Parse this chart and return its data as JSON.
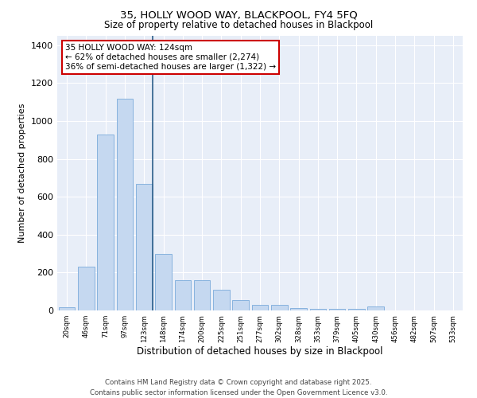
{
  "title_line1": "35, HOLLY WOOD WAY, BLACKPOOL, FY4 5FQ",
  "title_line2": "Size of property relative to detached houses in Blackpool",
  "xlabel": "Distribution of detached houses by size in Blackpool",
  "ylabel": "Number of detached properties",
  "bar_color": "#c5d8f0",
  "bar_edge_color": "#7aaadb",
  "highlight_line_color": "#2c5f8a",
  "background_color": "#e8eef8",
  "annotation_box_color": "#cc0000",
  "annotation_text": "35 HOLLY WOOD WAY: 124sqm\n← 62% of detached houses are smaller (2,274)\n36% of semi-detached houses are larger (1,322) →",
  "highlight_bin_index": 4,
  "categories": [
    "20sqm",
    "46sqm",
    "71sqm",
    "97sqm",
    "123sqm",
    "148sqm",
    "174sqm",
    "200sqm",
    "225sqm",
    "251sqm",
    "277sqm",
    "302sqm",
    "328sqm",
    "353sqm",
    "379sqm",
    "405sqm",
    "430sqm",
    "456sqm",
    "482sqm",
    "507sqm",
    "533sqm"
  ],
  "values": [
    15,
    230,
    930,
    1120,
    670,
    300,
    160,
    160,
    110,
    55,
    30,
    28,
    12,
    8,
    8,
    8,
    22,
    0,
    0,
    0,
    2
  ],
  "ylim": [
    0,
    1450
  ],
  "yticks": [
    0,
    200,
    400,
    600,
    800,
    1000,
    1200,
    1400
  ],
  "footer_line1": "Contains HM Land Registry data © Crown copyright and database right 2025.",
  "footer_line2": "Contains public sector information licensed under the Open Government Licence v3.0."
}
